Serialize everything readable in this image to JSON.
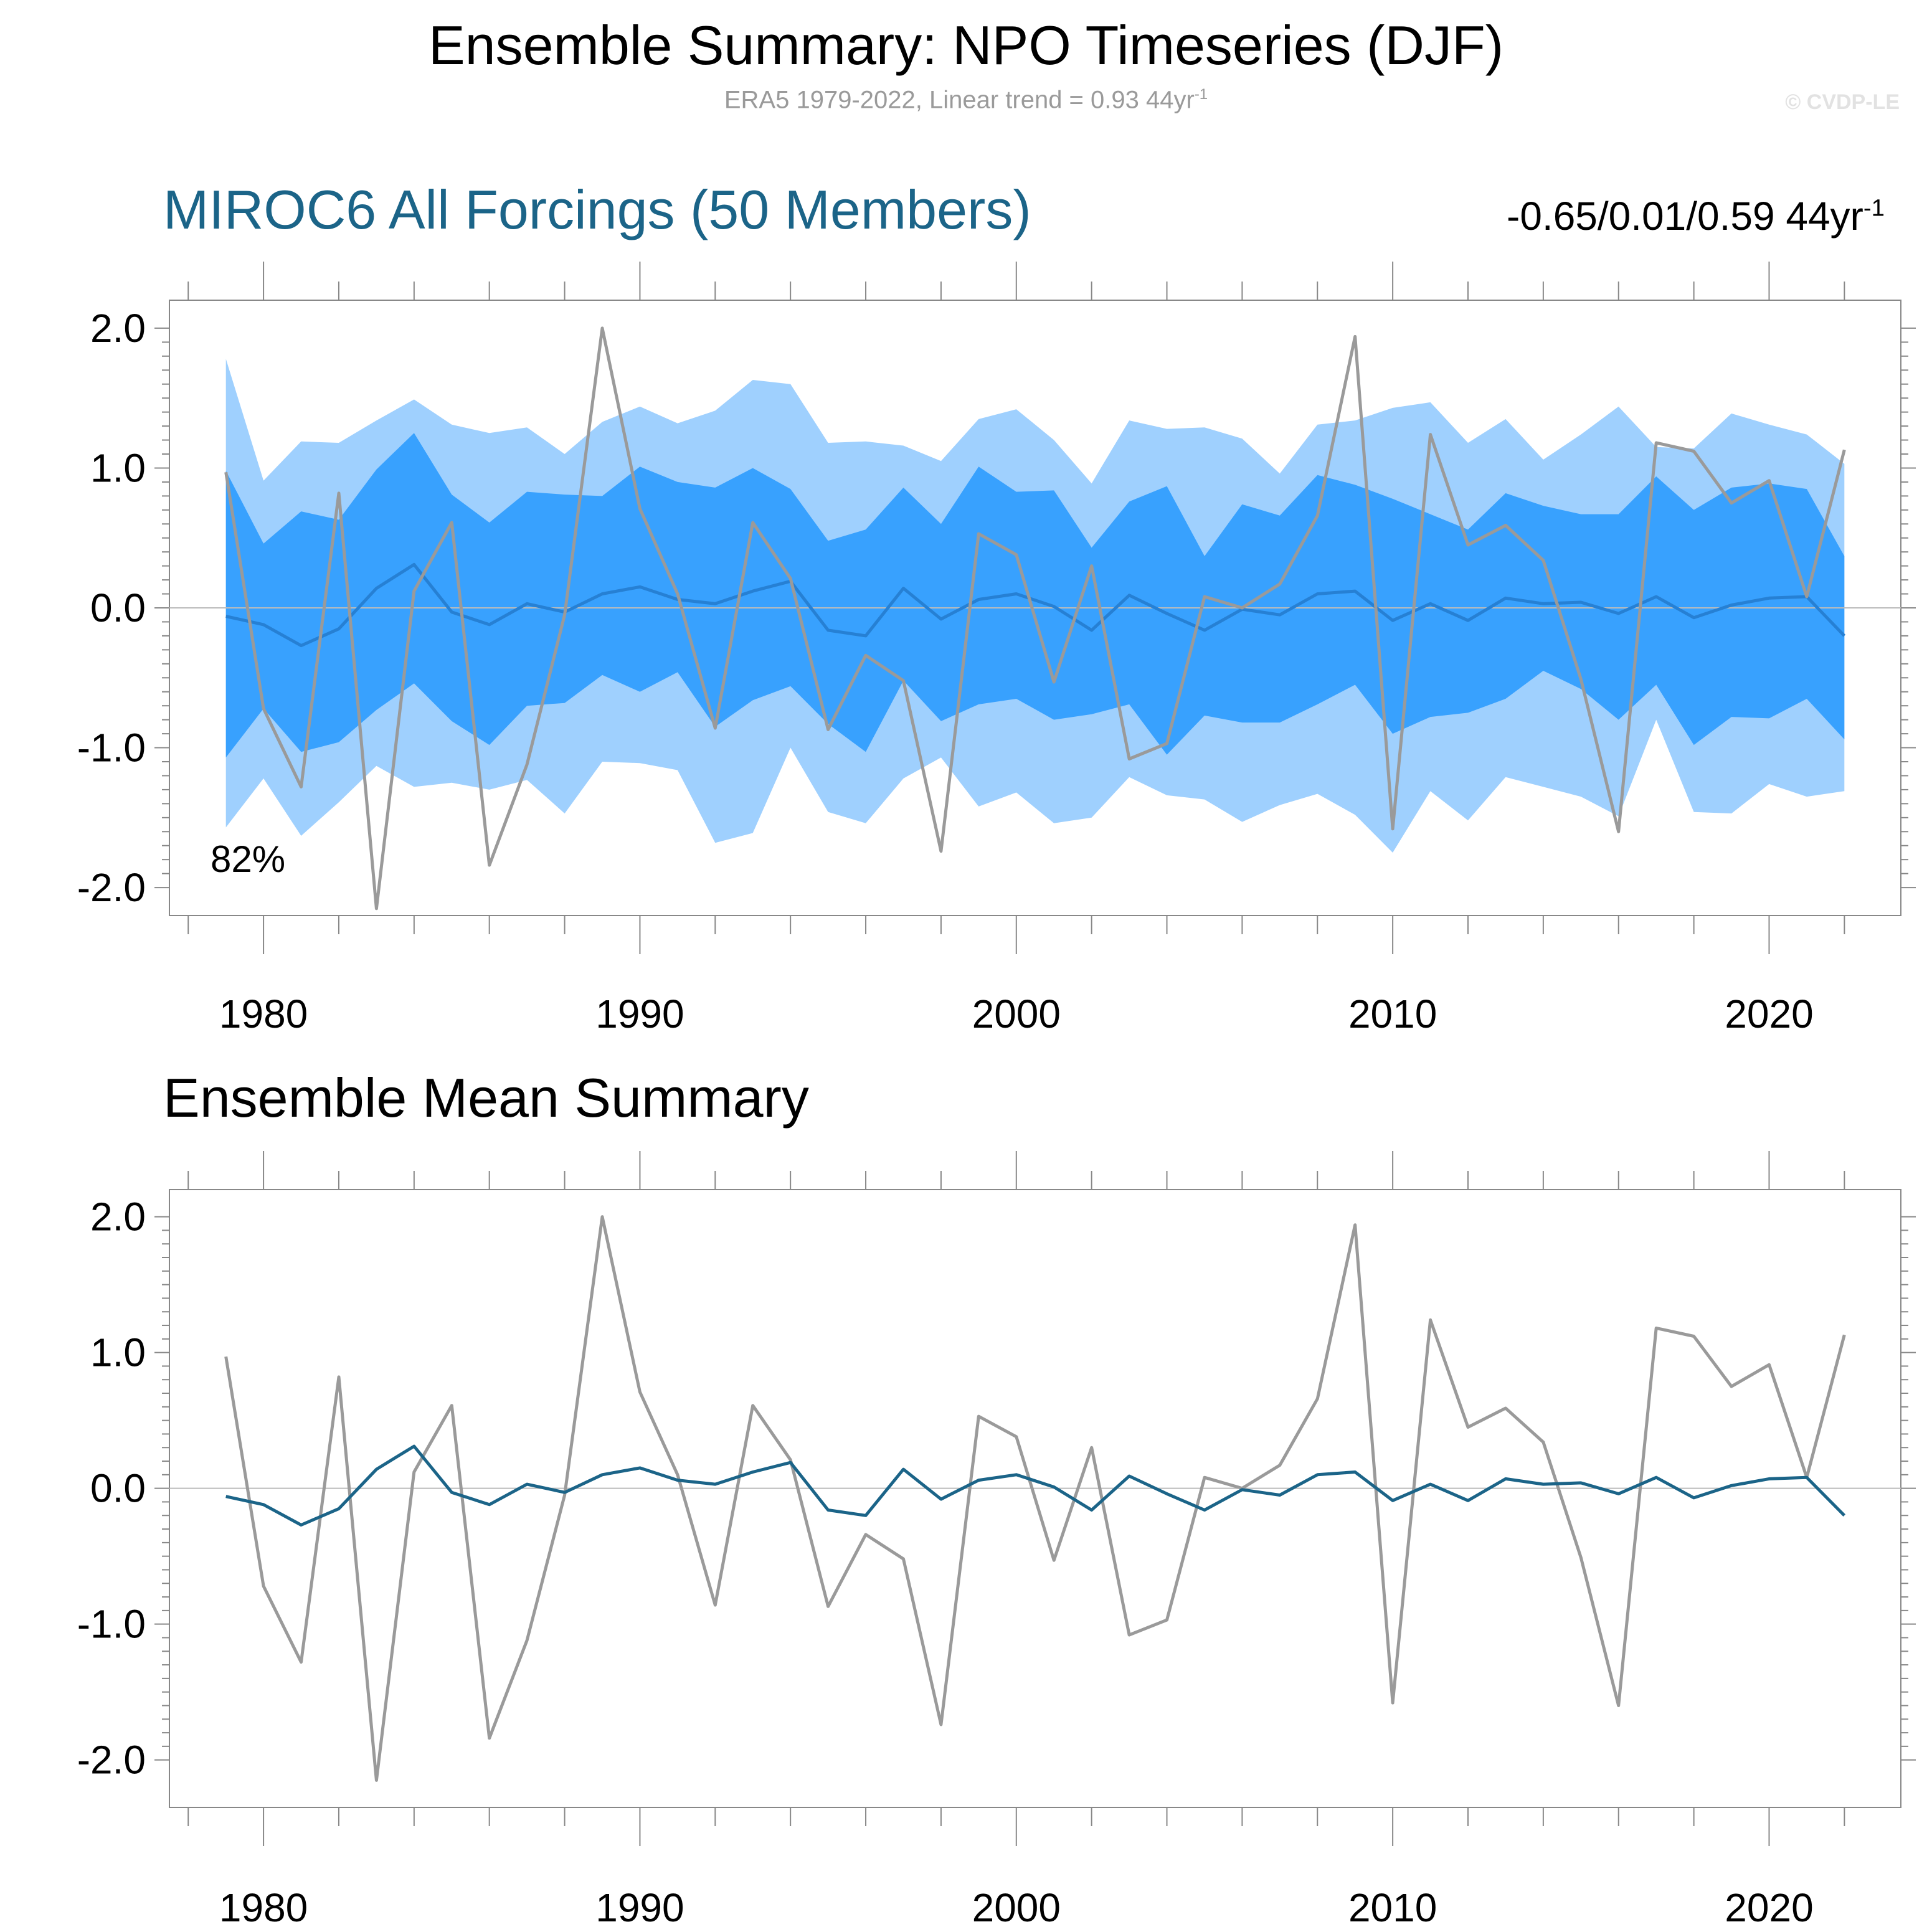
{
  "header": {
    "title": "Ensemble Summary: NPO Timeseries (DJF)",
    "subtitle_main": "ERA5 1979-2022, Linear trend = 0.93 44yr",
    "subtitle_sup": "-1",
    "copyright": "© CVDP-LE"
  },
  "panel1": {
    "title": "MIROC6 All Forcings (50 Members)",
    "trend_range": "-0.65/0.01/0.59 44yr",
    "trend_sup": "-1",
    "percent_label": "82%"
  },
  "panel2": {
    "title": "Ensemble Mean Summary"
  },
  "colors": {
    "outer_band": "#9fd0fe",
    "inner_band": "#38a1fe",
    "ensemble_mean_panel1": "#2680d4",
    "ensemble_mean_panel2": "#1b6488",
    "observations": "#9a9a9a",
    "axes": "#888888",
    "zero_line": "#bbbbbb"
  },
  "chart_data": [
    {
      "type": "area",
      "panel": "ensemble-spread",
      "x": [
        1979,
        1980,
        1981,
        1982,
        1983,
        1984,
        1985,
        1986,
        1987,
        1988,
        1989,
        1990,
        1991,
        1992,
        1993,
        1994,
        1995,
        1996,
        1997,
        1998,
        1999,
        2000,
        2001,
        2002,
        2003,
        2004,
        2005,
        2006,
        2007,
        2008,
        2009,
        2010,
        2011,
        2012,
        2013,
        2014,
        2015,
        2016,
        2017,
        2018,
        2019,
        2020,
        2021,
        2022
      ],
      "series": [
        {
          "role": "outer-band-upper",
          "values": [
            1.78,
            0.91,
            1.19,
            1.18,
            1.34,
            1.49,
            1.31,
            1.25,
            1.29,
            1.1,
            1.33,
            1.44,
            1.32,
            1.41,
            1.63,
            1.6,
            1.18,
            1.19,
            1.16,
            1.05,
            1.35,
            1.42,
            1.2,
            0.89,
            1.34,
            1.28,
            1.29,
            1.21,
            0.96,
            1.31,
            1.34,
            1.43,
            1.47,
            1.18,
            1.35,
            1.06,
            1.24,
            1.44,
            1.15,
            1.14,
            1.39,
            1.31,
            1.24,
            1.03
          ]
        },
        {
          "role": "inner-band-upper",
          "values": [
            0.98,
            0.46,
            0.69,
            0.63,
            0.99,
            1.25,
            0.81,
            0.61,
            0.83,
            0.81,
            0.8,
            1.01,
            0.9,
            0.86,
            1.0,
            0.85,
            0.48,
            0.56,
            0.86,
            0.6,
            1.01,
            0.83,
            0.84,
            0.43,
            0.76,
            0.87,
            0.37,
            0.74,
            0.66,
            0.95,
            0.88,
            0.78,
            0.67,
            0.56,
            0.82,
            0.73,
            0.67,
            0.67,
            0.94,
            0.7,
            0.86,
            0.89,
            0.85,
            0.37
          ]
        },
        {
          "role": "inner-band-lower",
          "values": [
            -1.07,
            -0.72,
            -1.03,
            -0.96,
            -0.73,
            -0.54,
            -0.81,
            -0.98,
            -0.7,
            -0.68,
            -0.48,
            -0.6,
            -0.46,
            -0.85,
            -0.66,
            -0.56,
            -0.83,
            -1.03,
            -0.52,
            -0.81,
            -0.69,
            -0.65,
            -0.8,
            -0.76,
            -0.69,
            -1.05,
            -0.77,
            -0.82,
            -0.82,
            -0.69,
            -0.55,
            -0.9,
            -0.78,
            -0.75,
            -0.65,
            -0.45,
            -0.58,
            -0.8,
            -0.55,
            -0.98,
            -0.78,
            -0.79,
            -0.65,
            -0.94
          ]
        },
        {
          "role": "outer-band-lower",
          "values": [
            -1.57,
            -1.22,
            -1.63,
            -1.39,
            -1.13,
            -1.28,
            -1.25,
            -1.3,
            -1.23,
            -1.47,
            -1.1,
            -1.11,
            -1.16,
            -1.68,
            -1.61,
            -1.0,
            -1.46,
            -1.54,
            -1.22,
            -1.07,
            -1.42,
            -1.32,
            -1.54,
            -1.5,
            -1.21,
            -1.34,
            -1.37,
            -1.53,
            -1.41,
            -1.33,
            -1.48,
            -1.75,
            -1.31,
            -1.52,
            -1.21,
            -1.28,
            -1.35,
            -1.49,
            -0.8,
            -1.46,
            -1.47,
            -1.26,
            -1.35,
            -1.31
          ]
        },
        {
          "name": "",
          "role": "ensemble-mean",
          "values": [
            -0.06,
            -0.12,
            -0.27,
            -0.15,
            0.14,
            0.31,
            -0.03,
            -0.12,
            0.03,
            -0.03,
            0.1,
            0.15,
            0.06,
            0.03,
            0.12,
            0.19,
            -0.16,
            -0.2,
            0.14,
            -0.08,
            0.06,
            0.1,
            0.01,
            -0.16,
            0.09,
            -0.04,
            -0.16,
            -0.01,
            -0.05,
            0.1,
            0.12,
            -0.09,
            0.03,
            -0.09,
            0.07,
            0.03,
            0.04,
            -0.04,
            0.08,
            -0.07,
            0.02,
            0.07,
            0.08,
            -0.2
          ]
        },
        {
          "name": "",
          "role": "observations",
          "values": [
            0.97,
            -0.72,
            -1.28,
            0.82,
            -2.15,
            0.12,
            0.61,
            -1.84,
            -1.12,
            -0.05,
            2.0,
            0.71,
            0.1,
            -0.86,
            0.61,
            0.21,
            -0.87,
            -0.34,
            -0.52,
            -1.74,
            0.53,
            0.38,
            -0.53,
            0.3,
            -1.08,
            -0.97,
            0.08,
            0.0,
            0.17,
            0.66,
            1.94,
            -1.58,
            1.24,
            0.45,
            0.59,
            0.34,
            -0.51,
            -1.6,
            1.18,
            1.12,
            0.75,
            0.91,
            0.08,
            1.13
          ]
        }
      ],
      "ylim": [
        -2.2,
        2.2
      ],
      "yticks": [
        "2.0",
        "1.0",
        "0.0",
        "-1.0",
        "-2.0"
      ],
      "xticks": [
        "1980",
        "1990",
        "2000",
        "2010",
        "2020"
      ],
      "xlim": [
        1977.5,
        2023.5
      ],
      "grid": false
    },
    {
      "type": "line",
      "panel": "ensemble-mean-summary",
      "x": [
        1979,
        1980,
        1981,
        1982,
        1983,
        1984,
        1985,
        1986,
        1987,
        1988,
        1989,
        1990,
        1991,
        1992,
        1993,
        1994,
        1995,
        1996,
        1997,
        1998,
        1999,
        2000,
        2001,
        2002,
        2003,
        2004,
        2005,
        2006,
        2007,
        2008,
        2009,
        2010,
        2011,
        2012,
        2013,
        2014,
        2015,
        2016,
        2017,
        2018,
        2019,
        2020,
        2021,
        2022
      ],
      "series": [
        {
          "name": "",
          "role": "ensemble-mean",
          "values": [
            -0.06,
            -0.12,
            -0.27,
            -0.15,
            0.14,
            0.31,
            -0.03,
            -0.12,
            0.03,
            -0.03,
            0.1,
            0.15,
            0.06,
            0.03,
            0.12,
            0.19,
            -0.16,
            -0.2,
            0.14,
            -0.08,
            0.06,
            0.1,
            0.01,
            -0.16,
            0.09,
            -0.04,
            -0.16,
            -0.01,
            -0.05,
            0.1,
            0.12,
            -0.09,
            0.03,
            -0.09,
            0.07,
            0.03,
            0.04,
            -0.04,
            0.08,
            -0.07,
            0.02,
            0.07,
            0.08,
            -0.2
          ]
        },
        {
          "name": "",
          "role": "observations",
          "values": [
            0.97,
            -0.72,
            -1.28,
            0.82,
            -2.15,
            0.12,
            0.61,
            -1.84,
            -1.12,
            -0.05,
            2.0,
            0.71,
            0.1,
            -0.86,
            0.61,
            0.21,
            -0.87,
            -0.34,
            -0.52,
            -1.74,
            0.53,
            0.38,
            -0.53,
            0.3,
            -1.08,
            -0.97,
            0.08,
            0.0,
            0.17,
            0.66,
            1.94,
            -1.58,
            1.24,
            0.45,
            0.59,
            0.34,
            -0.51,
            -1.6,
            1.18,
            1.12,
            0.75,
            0.91,
            0.08,
            1.13
          ]
        }
      ],
      "ylim": [
        -2.35,
        2.2
      ],
      "yticks": [
        "2.0",
        "1.0",
        "0.0",
        "-1.0",
        "-2.0"
      ],
      "xticks": [
        "1980",
        "1990",
        "2000",
        "2010",
        "2020"
      ],
      "xlim": [
        1977.5,
        2023.5
      ],
      "grid": false
    }
  ]
}
